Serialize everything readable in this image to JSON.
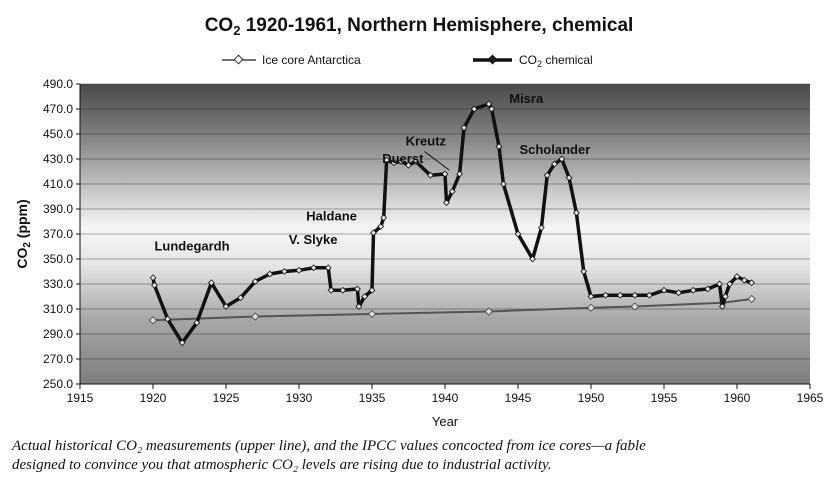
{
  "title_main": "CO",
  "title_sub": "2",
  "title_rest": " 1920-1961, Northern Hemisphere, chemical",
  "legend": {
    "ice_label": "Ice core Antarctica",
    "chem_label_main": "CO",
    "chem_label_sub": "2",
    "chem_label_rest": " chemical"
  },
  "axes": {
    "xlabel": "Year",
    "ylabel_main": "CO",
    "ylabel_sub": "2",
    "ylabel_rest": " (ppm)"
  },
  "caption": {
    "line1": "Actual historical CO₂ measurements (upper line), and the IPCC values concocted from ice cores—a fable",
    "line2": "designed to convince you that atmospheric CO₂ levels are rising due to industrial activity."
  },
  "colors": {
    "chemical_line": "#111111",
    "ice_line": "#555555",
    "plot_top": "#4a4a4a",
    "plot_mid": "#f4f4f4",
    "plot_bottom": "#7a7a7a"
  },
  "chart_data": {
    "type": "line",
    "xlabel": "Year",
    "ylabel": "CO2 (ppm)",
    "xlim": [
      1915,
      1965
    ],
    "ylim": [
      250,
      490
    ],
    "x_ticks": [
      1915,
      1920,
      1925,
      1930,
      1935,
      1940,
      1945,
      1950,
      1955,
      1960,
      1965
    ],
    "y_ticks": [
      250,
      270,
      290,
      310,
      330,
      350,
      370,
      390,
      410,
      430,
      450,
      470,
      490
    ],
    "y_tick_labels": [
      "250.0",
      "270.0",
      "290.0",
      "310.0",
      "330.0",
      "350.0",
      "370.0",
      "390.0",
      "410.0",
      "430.0",
      "450.0",
      "470.0",
      "490.0"
    ],
    "grid": true,
    "legend_position": "top",
    "annotations": [
      {
        "text": "Lundegardh",
        "x": 1920.1,
        "y": 357
      },
      {
        "text": "V. Slyke",
        "x": 1929.3,
        "y": 362
      },
      {
        "text": "Haldane",
        "x": 1930.5,
        "y": 381
      },
      {
        "text": "Duerst",
        "x": 1935.7,
        "y": 427
      },
      {
        "text": "Kreutz",
        "x": 1937.3,
        "y": 441
      },
      {
        "text": "Misra",
        "x": 1944.4,
        "y": 475
      },
      {
        "text": "Scholander",
        "x": 1945.1,
        "y": 434
      }
    ],
    "series": [
      {
        "name": "Ice core Antarctica",
        "x": [
          1920,
          1927,
          1935,
          1943,
          1950,
          1953,
          1959,
          1961
        ],
        "y": [
          301,
          304,
          306,
          308,
          311,
          312,
          315,
          318
        ]
      },
      {
        "name": "CO2 chemical",
        "x": [
          1920,
          1920.1,
          1921,
          1922,
          1923,
          1924,
          1925,
          1926,
          1927,
          1928,
          1929,
          1930,
          1931,
          1932,
          1932.2,
          1933,
          1934,
          1934.1,
          1934.5,
          1935,
          1935.1,
          1935.6,
          1935.8,
          1936,
          1936.5,
          1937,
          1937.5,
          1938,
          1939,
          1940,
          1940.1,
          1940.5,
          1941,
          1941.3,
          1942,
          1943,
          1943.2,
          1943.7,
          1944,
          1945,
          1946,
          1946.6,
          1947,
          1947.5,
          1948,
          1948.5,
          1949,
          1949.5,
          1950,
          1951,
          1952,
          1953,
          1954,
          1955,
          1956,
          1957,
          1958,
          1958.8,
          1959,
          1959.2,
          1959.5,
          1960,
          1960.5,
          1961
        ],
        "y": [
          335,
          329,
          302,
          283,
          299,
          331,
          312,
          319,
          332,
          338,
          340,
          341,
          343,
          343,
          325,
          325,
          326,
          312,
          320,
          325,
          371,
          376,
          383,
          429,
          427,
          428,
          425,
          428,
          417,
          418,
          395,
          404,
          418,
          455,
          470,
          474,
          470,
          440,
          410,
          370,
          350,
          375,
          417,
          426,
          430,
          415,
          387,
          340,
          320,
          321,
          321,
          321,
          321,
          325,
          323,
          325,
          326,
          330,
          312,
          320,
          330,
          336,
          333,
          331
        ]
      }
    ]
  }
}
